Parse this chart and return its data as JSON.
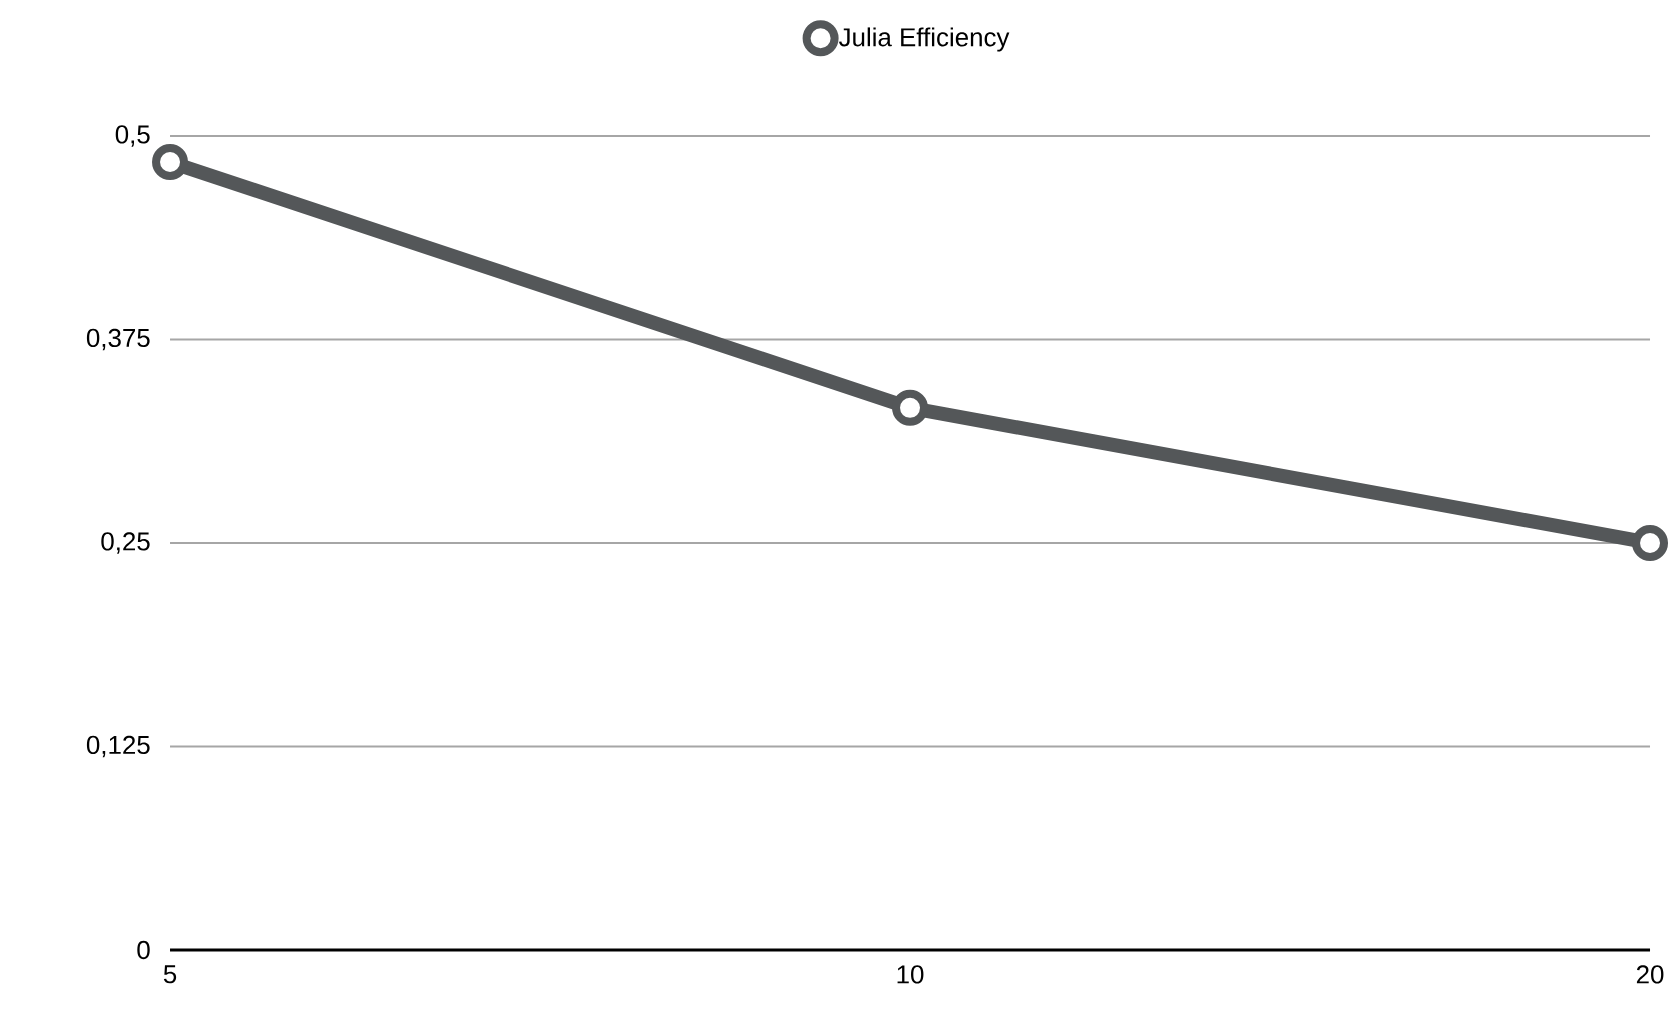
{
  "chart_data": {
    "type": "line",
    "categories": [
      "5",
      "10",
      "20"
    ],
    "series": [
      {
        "name": "Julia Efficiency",
        "color": "#545759",
        "values": [
          0.484,
          0.333,
          0.25
        ]
      }
    ],
    "ylim": [
      0,
      0.5
    ],
    "yticks": [
      0,
      {
        "value": 0.125,
        "label": "0,125"
      },
      {
        "value": 0.25,
        "label": "0,25"
      },
      {
        "value": 0.375,
        "label": "0,375"
      },
      {
        "value": 0.5,
        "label": "0,5"
      }
    ],
    "grid": "y",
    "legend": "top",
    "marker": "circle",
    "line_style": "solid"
  }
}
